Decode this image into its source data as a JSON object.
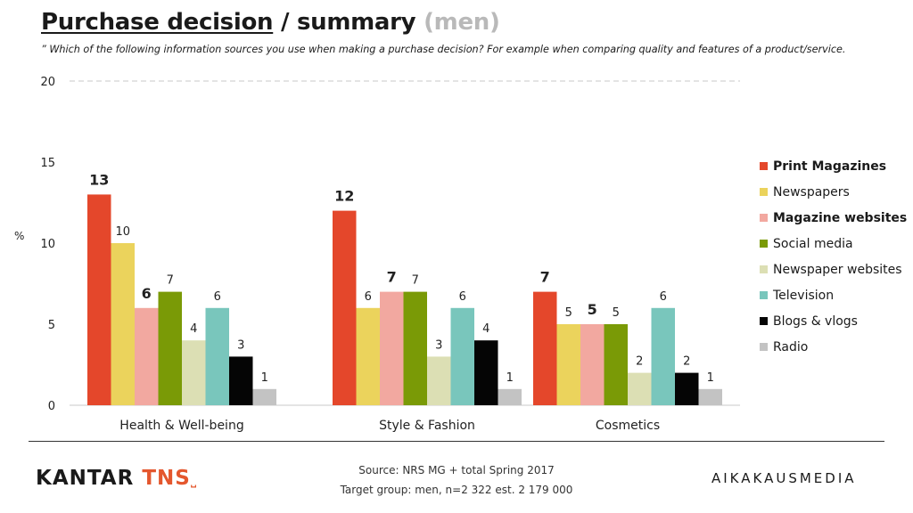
{
  "header": {
    "title_main": "Purchase decision",
    "title_sep": " / summary ",
    "title_group": "(men)",
    "question": "” Which of the following information sources you use when making a purchase decision? For example when comparing quality and features of a product/service."
  },
  "chart_data": {
    "type": "bar",
    "ylabel": "%",
    "ylim": [
      0,
      20
    ],
    "yticks": [
      0,
      5,
      10,
      15,
      20
    ],
    "grid": true,
    "legend_position": "right",
    "categories": [
      "Health & Well-being",
      "Style & Fashion",
      "Cosmetics"
    ],
    "series": [
      {
        "name": "Print Magazines",
        "color": "#e4472b",
        "bold": true,
        "values": [
          13,
          12,
          7
        ]
      },
      {
        "name": "Newspapers",
        "color": "#ebd35c",
        "bold": false,
        "values": [
          10,
          6,
          5
        ]
      },
      {
        "name": "Magazine websites",
        "color": "#f2a8a0",
        "bold": true,
        "values": [
          6,
          7,
          5
        ]
      },
      {
        "name": "Social media",
        "color": "#7a9a06",
        "bold": false,
        "values": [
          7,
          7,
          5
        ]
      },
      {
        "name": "Newspaper websites",
        "color": "#dcdfb4",
        "bold": false,
        "values": [
          4,
          3,
          2
        ]
      },
      {
        "name": "Television",
        "color": "#79c6bc",
        "bold": false,
        "values": [
          6,
          6,
          6
        ]
      },
      {
        "name": "Blogs & vlogs",
        "color": "#050505",
        "bold": false,
        "values": [
          3,
          4,
          2
        ]
      },
      {
        "name": "Radio",
        "color": "#c3c3c3",
        "bold": false,
        "values": [
          1,
          1,
          1
        ]
      }
    ]
  },
  "footer": {
    "brand_kantar": "KANTAR",
    "brand_tns": "TNS",
    "brand_mark": "˽",
    "source_line1": "Source: NRS MG + total Spring 2017",
    "source_line2": "Target group: men, n=2 322 est. 2 179 000",
    "partner": "AIKAKAUSMEDIA"
  }
}
